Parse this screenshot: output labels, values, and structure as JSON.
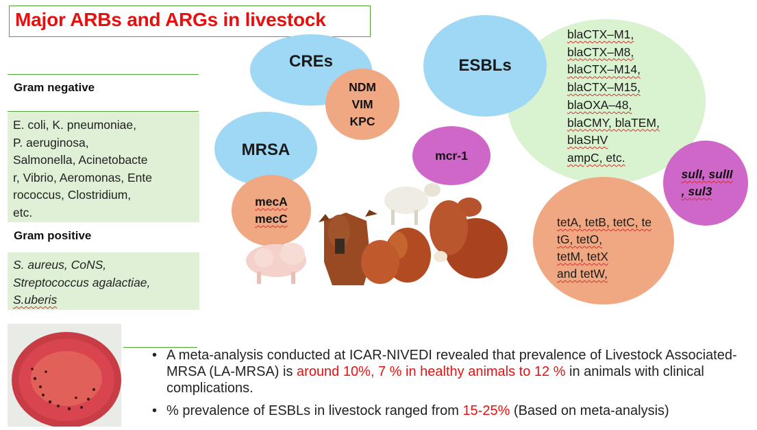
{
  "title": "Major ARBs and ARGs in livestock",
  "gram_negative": {
    "heading": "Gram negative",
    "lines": [
      "E. coli, K. pneumoniae,",
      "P. aeruginosa,",
      "Salmonella, Acinetobacte",
      "r, Vibrio, Aeromonas, Ente",
      "rococcus, Clostridium,",
      "etc."
    ]
  },
  "gram_positive": {
    "heading": "Gram positive",
    "lines": [
      "S. aureus, CoNS,",
      "Streptococcus agalactiae,",
      "S.uberis"
    ]
  },
  "cres": {
    "label": "CREs",
    "genes": [
      "NDM",
      "VIM",
      "KPC"
    ]
  },
  "mrsa": {
    "label": "MRSA",
    "genes": [
      "mecA",
      "mecC"
    ]
  },
  "mcr": {
    "label": "mcr-1"
  },
  "esbls": {
    "label": "ESBLs",
    "genes": [
      "blaCTX–M1,",
      "blaCTX–M8,",
      "blaCTX–M14,",
      "blaCTX–M15,",
      "blaOXA–48,",
      "blaCMY, blaTEM,",
      "blaSHV",
      "ampC, etc."
    ]
  },
  "sul": {
    "lines": [
      "sulI, sulII",
      ", sul3"
    ]
  },
  "tet": {
    "lines": [
      "tetA, tetB, tetC, te",
      "tG, tetO,",
      "tetM, tetX",
      "and tetW,"
    ]
  },
  "bullets": [
    {
      "pre": "A meta-analysis conducted at ICAR-NIVEDI revealed that prevalence of Livestock Associated-MRSA (LA-MRSA) is ",
      "highlight": "around 10%, 7 % in healthy animals to 12 %",
      "post": " in animals with clinical complications."
    },
    {
      "pre": "% prevalence of ESBLs in livestock ranged from ",
      "highlight": "15-25%",
      "post": " (Based on meta-analysis)"
    }
  ],
  "bullet_char": "•",
  "colors": {
    "title": "#e8100e",
    "highlight": "#e8100e",
    "panel": "#dff0d6",
    "blue": "#9ed8f4",
    "salmon": "#f0a882",
    "magenta": "#cf67c9",
    "light_green": "#d9f2cf"
  }
}
